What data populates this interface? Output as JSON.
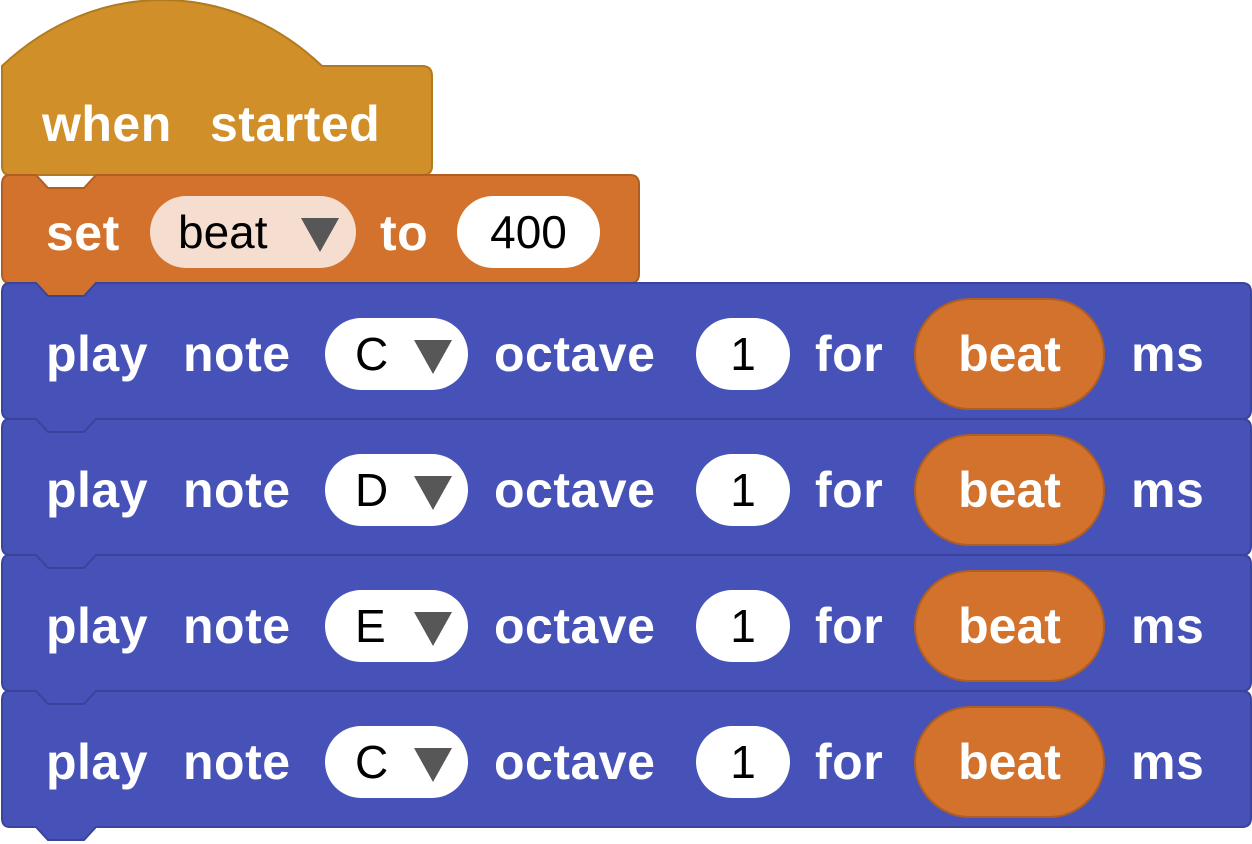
{
  "colors": {
    "hat": "#d08f28",
    "variable": "#d2722c",
    "music": "#4752b8",
    "variable_field": "#f5ddd0",
    "field": "#ffffff"
  },
  "hat_block": {
    "label_1": "when",
    "label_2": "started"
  },
  "set_block": {
    "label_set": "set",
    "variable": "beat",
    "label_to": "to",
    "value": "400"
  },
  "play_blocks": [
    {
      "label_play": "play",
      "label_note": "note",
      "note": "C",
      "label_octave": "octave",
      "octave": "1",
      "label_for": "for",
      "duration": "beat",
      "label_ms": "ms"
    },
    {
      "label_play": "play",
      "label_note": "note",
      "note": "D",
      "label_octave": "octave",
      "octave": "1",
      "label_for": "for",
      "duration": "beat",
      "label_ms": "ms"
    },
    {
      "label_play": "play",
      "label_note": "note",
      "note": "E",
      "label_octave": "octave",
      "octave": "1",
      "label_for": "for",
      "duration": "beat",
      "label_ms": "ms"
    },
    {
      "label_play": "play",
      "label_note": "note",
      "note": "C",
      "label_octave": "octave",
      "octave": "1",
      "label_for": "for",
      "duration": "beat",
      "label_ms": "ms"
    }
  ]
}
